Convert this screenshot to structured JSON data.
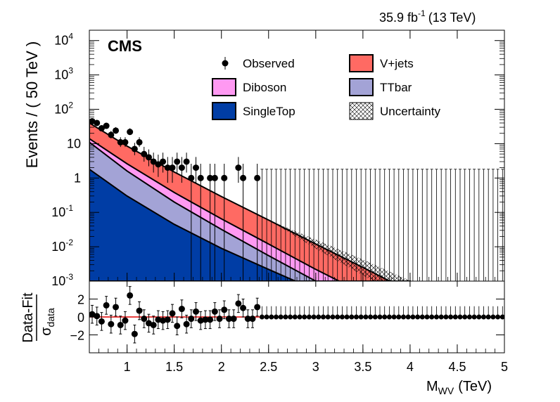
{
  "header": {
    "lumi": "35.9 fb",
    "lumi_exp": "-1",
    "energy": "(13 TeV)",
    "experiment": "CMS"
  },
  "colors": {
    "vjets": "#ff6a63",
    "diboson": "#ff99f2",
    "ttbar": "#a3a3d6",
    "singletop": "#003da5",
    "fit_line": "#e00000",
    "data": "#000000"
  },
  "chart_data": [
    {
      "type": "area",
      "panel": "main",
      "ylabel": "Events / ( 50 TeV )",
      "xlim": [
        0.6,
        5.0
      ],
      "ylim": [
        0.001,
        20000
      ],
      "log_y": true,
      "yticks": [
        {
          "v": 0.001,
          "m": "10",
          "e": "-3"
        },
        {
          "v": 0.01,
          "m": "10",
          "e": "-2"
        },
        {
          "v": 0.1,
          "m": "10",
          "e": "-1"
        },
        {
          "v": 1,
          "m": "1",
          "e": ""
        },
        {
          "v": 10,
          "m": "10",
          "e": ""
        },
        {
          "v": 100,
          "m": "10",
          "e": "2"
        },
        {
          "v": 1000,
          "m": "10",
          "e": "3"
        },
        {
          "v": 10000,
          "m": "10",
          "e": "4"
        }
      ],
      "stack_edges": {
        "x": [
          0.6,
          1.0,
          1.5,
          2.0,
          2.5,
          3.0,
          3.5,
          4.0
        ],
        "singletop": [
          1.8,
          0.3,
          0.045,
          0.009,
          0.0022,
          0.00055,
          0.00015,
          4e-05
        ],
        "ttbar": [
          11,
          1.6,
          0.2,
          0.032,
          0.0055,
          0.001,
          0.0002,
          4e-05
        ],
        "diboson": [
          14,
          2.6,
          0.38,
          0.065,
          0.012,
          0.0022,
          0.00045,
          0.0001
        ],
        "total": [
          40,
          8.5,
          1.5,
          0.29,
          0.06,
          0.012,
          0.0025,
          0.0005
        ]
      },
      "observed": {
        "x": [
          0.63,
          0.68,
          0.73,
          0.78,
          0.83,
          0.88,
          0.93,
          0.98,
          1.03,
          1.08,
          1.13,
          1.18,
          1.23,
          1.28,
          1.33,
          1.38,
          1.43,
          1.48,
          1.53,
          1.58,
          1.63,
          1.68,
          1.73,
          1.78,
          1.88,
          1.93,
          2.03,
          2.18,
          2.23,
          2.38
        ],
        "y": [
          45,
          40,
          28,
          33,
          18,
          24,
          11,
          11,
          22,
          7,
          11,
          5,
          4,
          3,
          2.5,
          3,
          2,
          2,
          3,
          2,
          3,
          1,
          2,
          1,
          1,
          1,
          1,
          2,
          1,
          1
        ]
      },
      "legend": [
        {
          "key": "observed",
          "label": "Observed"
        },
        {
          "key": "vjets",
          "label": "V+jets"
        },
        {
          "key": "diboson",
          "label": "Diboson"
        },
        {
          "key": "ttbar",
          "label": "TTbar"
        },
        {
          "key": "singletop",
          "label": "SingleTop"
        },
        {
          "key": "uncertainty",
          "label": "Uncertainty"
        }
      ],
      "legend_position": "top-right"
    },
    {
      "type": "scatter",
      "panel": "ratio",
      "ylabel": "Data-Fit",
      "ylabel_den": "σ",
      "ylabel_den_sub": "data",
      "xlabel": "M",
      "xlabel_sub": "WV",
      "xlabel_unit": "(TeV)",
      "xlim": [
        0.6,
        5.0
      ],
      "ylim": [
        -4,
        4
      ],
      "xticks": [
        "1",
        "1.5",
        "2",
        "2.5",
        "3",
        "3.5",
        "4",
        "4.5",
        "5"
      ],
      "yticks": [
        "2",
        "0",
        "−2"
      ],
      "x": [
        0.63,
        0.68,
        0.73,
        0.78,
        0.83,
        0.88,
        0.93,
        0.98,
        1.03,
        1.08,
        1.13,
        1.18,
        1.23,
        1.28,
        1.33,
        1.38,
        1.43,
        1.48,
        1.53,
        1.58,
        1.63,
        1.68,
        1.73,
        1.78,
        1.83,
        1.88,
        1.93,
        1.98,
        2.03,
        2.08,
        2.13,
        2.18,
        2.23,
        2.28,
        2.33,
        2.38
      ],
      "values": [
        0.3,
        0.1,
        -0.5,
        1.3,
        -0.8,
        1.1,
        -0.9,
        -0.4,
        2.4,
        -1.9,
        0.7,
        -0.2,
        -0.7,
        -0.9,
        -0.3,
        -0.4,
        -0.3,
        0.4,
        -1.0,
        0.9,
        -0.8,
        -0.2,
        0.6,
        -0.4,
        -0.3,
        -0.3,
        0.6,
        -0.2,
        0.8,
        -0.2,
        -0.2,
        1.5,
        1.0,
        -0.2,
        -0.2,
        1.1
      ]
    }
  ]
}
